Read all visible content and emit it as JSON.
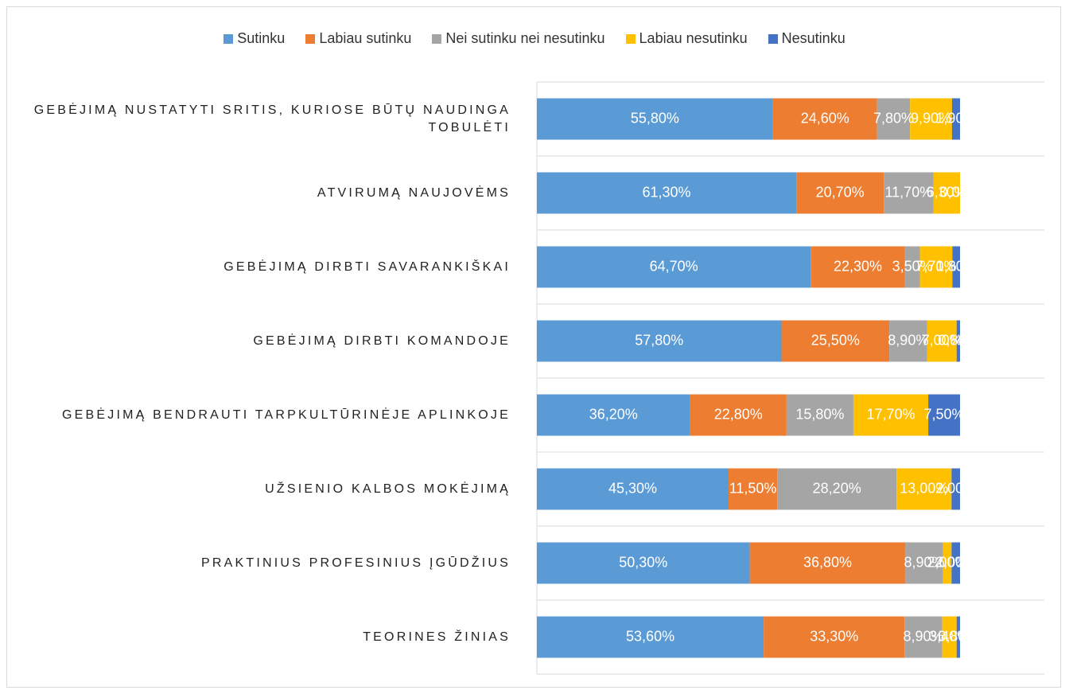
{
  "chart_data": {
    "type": "stacked-bar-horizontal",
    "categories": [
      "GEBĖJIMĄ NUSTATYTI SRITIS, KURIOSE BŪTŲ NAUDINGA TOBULĖTI",
      "ATVIRUMĄ NAUJOVĖMS",
      "GEBĖJIMĄ DIRBTI SAVARANKIŠKAI",
      "GEBĖJIMĄ DIRBTI KOMANDOJE",
      "GEBĖJIMĄ BENDRAUTI TARPKULTŪRINĖJE APLINKOJE",
      "UŽSIENIO KALBOS MOKĖJIMĄ",
      "PRAKTINIUS PROFESINIUS ĮGŪDŽIUS",
      "TEORINES ŽINIAS"
    ],
    "xlim": [
      0,
      100
    ],
    "series": [
      {
        "name": "Sutinku",
        "color": "#5b9bd5",
        "values": [
          55.8,
          61.3,
          64.7,
          57.8,
          36.2,
          45.3,
          50.3,
          53.6
        ],
        "value_labels": [
          "55,80%",
          "61,30%",
          "64,70%",
          "57,80%",
          "36,20%",
          "45,30%",
          "50,30%",
          "53,60%"
        ]
      },
      {
        "name": "Labiau sutinku",
        "color": "#ed7d31",
        "values": [
          24.6,
          20.7,
          22.3,
          25.5,
          22.8,
          11.5,
          36.8,
          33.3
        ],
        "value_labels": [
          "24,60%",
          "20,70%",
          "22,30%",
          "25,50%",
          "22,80%",
          "11,50%",
          "36,80%",
          "33,30%"
        ]
      },
      {
        "name": "Nei sutinku nei nesutinku",
        "color": "#a5a5a5",
        "values": [
          7.8,
          11.7,
          3.5,
          8.9,
          15.8,
          28.2,
          8.9,
          8.9
        ],
        "value_labels": [
          "7,80%",
          "11,70%",
          "3,50%",
          "8,90%",
          "15,80%",
          "28,20%",
          "8,90%",
          "8,90%"
        ]
      },
      {
        "name": "Labiau nesutinku",
        "color": "#ffc000",
        "values": [
          9.9,
          6.3,
          7.7,
          7.0,
          17.7,
          13.0,
          2.0,
          3.4
        ],
        "value_labels": [
          "9,90%",
          "6,30%",
          "7,70%",
          "7,00%",
          "17,70%",
          "13,00%",
          "2,00%",
          "3,40%"
        ]
      },
      {
        "name": "Nesutinku",
        "color": "#4472c4",
        "values": [
          1.9,
          0.0,
          1.8,
          0.8,
          7.5,
          2.0,
          2.0,
          0.8
        ],
        "value_labels": [
          "1,90%",
          "0,00%",
          "1,80%",
          "0,80%",
          "7,50%",
          "2,00%",
          "2,00%",
          "0,80%"
        ]
      }
    ]
  }
}
